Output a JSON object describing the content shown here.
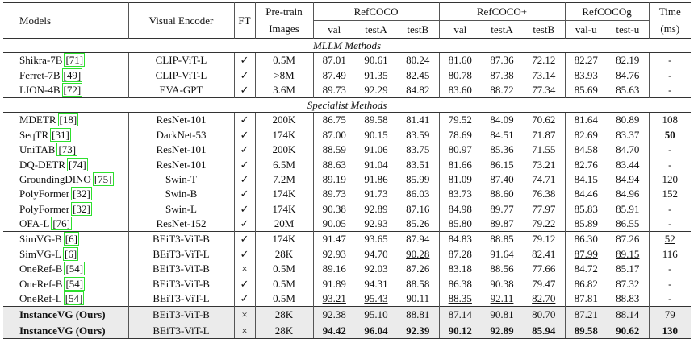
{
  "header": {
    "models": "Models",
    "encoder": "Visual Encoder",
    "ft": "FT",
    "pretrain": [
      "Pre-train",
      "Images"
    ],
    "groups": [
      {
        "name": "RefCOCO",
        "splits": [
          "val",
          "testA",
          "testB"
        ]
      },
      {
        "name": "RefCOCO+",
        "splits": [
          "val",
          "testA",
          "testB"
        ]
      },
      {
        "name": "RefCOCOg",
        "splits": [
          "val-u",
          "test-u"
        ]
      }
    ],
    "time": [
      "Time",
      "(ms)"
    ]
  },
  "sections": [
    {
      "title": "MLLM Methods",
      "groups": [
        [
          {
            "model": "Shikra-7B",
            "cite": "[71]",
            "encoder": "CLIP-ViT-L",
            "ft": "✓",
            "images": "0.5M",
            "scores": [
              "87.01",
              "90.61",
              "80.24",
              "81.60",
              "87.36",
              "72.12",
              "82.27",
              "82.19"
            ],
            "time": "-"
          },
          {
            "model": "Ferret-7B",
            "cite": "[49]",
            "encoder": "CLIP-ViT-L",
            "ft": "✓",
            "images": ">8M",
            "scores": [
              "87.49",
              "91.35",
              "82.45",
              "80.78",
              "87.38",
              "73.14",
              "83.93",
              "84.76"
            ],
            "time": "-"
          },
          {
            "model": "LION-4B",
            "cite": "[72]",
            "encoder": "EVA-GPT",
            "ft": "✓",
            "images": "3.6M",
            "scores": [
              "89.73",
              "92.29",
              "84.82",
              "83.60",
              "88.72",
              "77.34",
              "85.69",
              "85.63"
            ],
            "time": "-"
          }
        ]
      ]
    },
    {
      "title": "Specialist Methods",
      "groups": [
        [
          {
            "model": "MDETR",
            "cite": "[18]",
            "encoder": "ResNet-101",
            "ft": "✓",
            "images": "200K",
            "scores": [
              "86.75",
              "89.58",
              "81.41",
              "79.52",
              "84.09",
              "70.62",
              "81.64",
              "80.89"
            ],
            "time": "108"
          },
          {
            "model": "SeqTR",
            "cite": "[31]",
            "encoder": "DarkNet-53",
            "ft": "✓",
            "images": "174K",
            "scores": [
              "87.00",
              "90.15",
              "83.59",
              "78.69",
              "84.51",
              "71.87",
              "82.69",
              "83.37"
            ],
            "time": "50",
            "bold": [
              "time"
            ]
          },
          {
            "model": "UniTAB",
            "cite": "[73]",
            "encoder": "ResNet-101",
            "ft": "✓",
            "images": "200K",
            "scores": [
              "88.59",
              "91.06",
              "83.75",
              "80.97",
              "85.36",
              "71.55",
              "84.58",
              "84.70"
            ],
            "time": "-"
          },
          {
            "model": "DQ-DETR",
            "cite": "[74]",
            "encoder": "ResNet-101",
            "ft": "✓",
            "images": "6.5M",
            "scores": [
              "88.63",
              "91.04",
              "83.51",
              "81.66",
              "86.15",
              "73.21",
              "82.76",
              "83.44"
            ],
            "time": "-"
          },
          {
            "model": "GroundingDINO",
            "cite": "[75]",
            "encoder": "Swin-T",
            "ft": "✓",
            "images": "7.2M",
            "scores": [
              "89.19",
              "91.86",
              "85.99",
              "81.09",
              "87.40",
              "74.71",
              "84.15",
              "84.94"
            ],
            "time": "120"
          },
          {
            "model": "PolyFormer",
            "cite": "[32]",
            "encoder": "Swin-B",
            "ft": "✓",
            "images": "174K",
            "scores": [
              "89.73",
              "91.73",
              "86.03",
              "83.73",
              "88.60",
              "76.38",
              "84.46",
              "84.96"
            ],
            "time": "152"
          },
          {
            "model": "PolyFormer",
            "cite": "[32]",
            "encoder": "Swin-L",
            "ft": "✓",
            "images": "174K",
            "scores": [
              "90.38",
              "92.89",
              "87.16",
              "84.98",
              "89.77",
              "77.97",
              "85.83",
              "85.91"
            ],
            "time": "-"
          },
          {
            "model": "OFA-L",
            "cite": "[76]",
            "encoder": "ResNet-152",
            "ft": "✓",
            "images": "20M",
            "scores": [
              "90.05",
              "92.93",
              "85.26",
              "85.80",
              "89.87",
              "79.22",
              "85.89",
              "86.55"
            ],
            "time": "-"
          }
        ],
        [
          {
            "model": "SimVG-B",
            "cite": "[6]",
            "encoder": "BEiT3-ViT-B",
            "ft": "✓",
            "images": "174K",
            "scores": [
              "91.47",
              "93.65",
              "87.94",
              "84.83",
              "88.85",
              "79.12",
              "86.30",
              "87.26"
            ],
            "time": "52",
            "underline": [
              "time"
            ]
          },
          {
            "model": "SimVG-L",
            "cite": "[6]",
            "encoder": "BEiT3-ViT-L",
            "ft": "✓",
            "images": "28K",
            "scores": [
              "92.93",
              "94.70",
              "90.28",
              "87.28",
              "91.64",
              "82.41",
              "87.99",
              "89.15"
            ],
            "time": "116",
            "underline": [
              "scores.2",
              "scores.6",
              "scores.7"
            ]
          },
          {
            "model": "OneRef-B",
            "cite": "[54]",
            "encoder": "BEiT3-ViT-B",
            "ft": "×",
            "images": "0.5M",
            "scores": [
              "89.16",
              "92.03",
              "87.26",
              "83.18",
              "88.56",
              "77.66",
              "84.72",
              "85.17"
            ],
            "time": "-"
          },
          {
            "model": "OneRef-B",
            "cite": "[54]",
            "encoder": "BEiT3-ViT-B",
            "ft": "✓",
            "images": "0.5M",
            "scores": [
              "91.89",
              "94.31",
              "88.58",
              "86.38",
              "90.38",
              "79.47",
              "86.82",
              "87.32"
            ],
            "time": "-"
          },
          {
            "model": "OneRef-L",
            "cite": "[54]",
            "encoder": "BEiT3-ViT-L",
            "ft": "✓",
            "images": "0.5M",
            "scores": [
              "93.21",
              "95.43",
              "90.11",
              "88.35",
              "92.11",
              "82.70",
              "87.81",
              "88.83"
            ],
            "time": "-",
            "underline": [
              "scores.0",
              "scores.1",
              "scores.3",
              "scores.4",
              "scores.5"
            ]
          }
        ],
        [
          {
            "model": "InstanceVG (Ours)",
            "encoder": "BEiT3-ViT-B",
            "ft": "×",
            "images": "28K",
            "scores": [
              "92.38",
              "95.10",
              "88.81",
              "87.14",
              "90.81",
              "80.70",
              "87.21",
              "88.14"
            ],
            "time": "79",
            "bold": [
              "model"
            ],
            "highlight": true
          },
          {
            "model": "InstanceVG (Ours)",
            "encoder": "BEiT3-ViT-L",
            "ft": "×",
            "images": "28K",
            "scores": [
              "94.42",
              "96.04",
              "92.39",
              "90.12",
              "92.89",
              "85.94",
              "89.58",
              "90.62"
            ],
            "time": "130",
            "bold": [
              "model",
              "scores.0",
              "scores.1",
              "scores.2",
              "scores.3",
              "scores.4",
              "scores.5",
              "scores.6",
              "scores.7",
              "time"
            ],
            "highlight": true
          }
        ]
      ]
    }
  ]
}
